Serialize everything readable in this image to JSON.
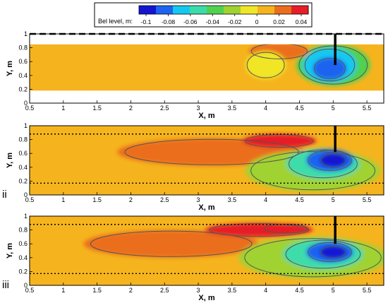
{
  "colors": {
    "scale": [
      "#1414d2",
      "#1e64f0",
      "#14c8f0",
      "#3cdcaa",
      "#50d250",
      "#a0d232",
      "#f0e628",
      "#f5b41e",
      "#eb6e1e",
      "#e61e28"
    ],
    "contour": "#555555",
    "frame": "#000000"
  },
  "chart_data": {
    "type": "heatmap",
    "colorbar": {
      "label": "Bel level, m:",
      "ticks": [
        "-0.1",
        "-0.08",
        "-0.06",
        "-0.04",
        "-0.02",
        "0",
        "0.02",
        "0.04"
      ],
      "range": [
        -0.1,
        0.04
      ]
    },
    "panels": [
      {
        "label": "",
        "xlabel": "X, m",
        "ylabel": "Y, m",
        "xlim": [
          0.5,
          5.75
        ],
        "ylim": [
          0,
          1
        ],
        "xticks": [
          "0.5",
          "1",
          "1.5",
          "2",
          "2.5",
          "3",
          "3.5",
          "4",
          "4.5",
          "5",
          "5.5"
        ],
        "yticks": [
          "0",
          "0.2",
          "0.4",
          "0.6",
          "0.8",
          "1"
        ],
        "data_region": {
          "x": [
            0.5,
            5.75
          ],
          "y": [
            0.18,
            0.85
          ]
        },
        "blobs": [
          {
            "x": 5.0,
            "y": 0.55,
            "rx": 0.55,
            "ry": 0.3,
            "v": -0.04
          },
          {
            "x": 4.95,
            "y": 0.55,
            "rx": 0.4,
            "ry": 0.25,
            "v": -0.06
          },
          {
            "x": 4.95,
            "y": 0.5,
            "rx": 0.25,
            "ry": 0.16,
            "v": -0.085
          },
          {
            "x": 4.2,
            "y": 0.75,
            "rx": 0.45,
            "ry": 0.12,
            "v": 0.02
          },
          {
            "x": 4.0,
            "y": 0.55,
            "rx": 0.3,
            "ry": 0.2,
            "v": -0.01
          }
        ],
        "reference_lines": [
          {
            "y": 1.0,
            "style": "dashed"
          }
        ],
        "pile": {
          "x": 5.03,
          "y_top": 1.0,
          "y_bottom": 0.55
        }
      },
      {
        "label": "ii",
        "xlabel": "X, m",
        "ylabel": "Y, m",
        "xlim": [
          0.5,
          5.75
        ],
        "ylim": [
          0,
          1
        ],
        "xticks": [
          "0.5",
          "1",
          "1.5",
          "2",
          "2.5",
          "3",
          "3.5",
          "4",
          "4.5",
          "5",
          "5.5"
        ],
        "yticks": [
          "0",
          "0.2",
          "0.4",
          "0.6",
          "0.8",
          "1"
        ],
        "data_region": {
          "x": [
            0.5,
            5.75
          ],
          "y": [
            0,
            1
          ]
        },
        "blobs": [
          {
            "x": 3.2,
            "y": 0.62,
            "rx": 1.4,
            "ry": 0.2,
            "v": 0.018
          },
          {
            "x": 4.2,
            "y": 0.78,
            "rx": 0.55,
            "ry": 0.1,
            "v": 0.035
          },
          {
            "x": 4.7,
            "y": 0.35,
            "rx": 1.0,
            "ry": 0.3,
            "v": -0.03
          },
          {
            "x": 4.85,
            "y": 0.45,
            "rx": 0.55,
            "ry": 0.22,
            "v": -0.055
          },
          {
            "x": 4.95,
            "y": 0.5,
            "rx": 0.35,
            "ry": 0.16,
            "v": -0.075
          },
          {
            "x": 5.0,
            "y": 0.5,
            "rx": 0.2,
            "ry": 0.1,
            "v": -0.095
          }
        ],
        "reference_lines": [
          {
            "y": 0.88,
            "style": "dotted"
          },
          {
            "y": 0.17,
            "style": "dotted"
          }
        ],
        "pile": {
          "x": 5.03,
          "y_top": 1.0,
          "y_bottom": 0.62
        }
      },
      {
        "label": "iii",
        "xlabel": "X, m",
        "ylabel": "Y, m",
        "xlim": [
          0.5,
          5.75
        ],
        "ylim": [
          0,
          1
        ],
        "xticks": [
          "0.5",
          "1",
          "1.5",
          "2",
          "2.5",
          "3",
          "3.5",
          "4",
          "4.5",
          "5",
          "5.5"
        ],
        "yticks": [
          "0",
          "0.2",
          "0.4",
          "0.6",
          "0.8",
          "1"
        ],
        "data_region": {
          "x": [
            0.5,
            5.75
          ],
          "y": [
            0,
            1
          ]
        },
        "blobs": [
          {
            "x": 2.6,
            "y": 0.6,
            "rx": 1.3,
            "ry": 0.2,
            "v": 0.022
          },
          {
            "x": 3.9,
            "y": 0.8,
            "rx": 0.8,
            "ry": 0.1,
            "v": 0.03
          },
          {
            "x": 4.3,
            "y": 0.82,
            "rx": 0.35,
            "ry": 0.07,
            "v": 0.045
          },
          {
            "x": 4.7,
            "y": 0.4,
            "rx": 1.1,
            "ry": 0.3,
            "v": -0.03
          },
          {
            "x": 4.85,
            "y": 0.45,
            "rx": 0.6,
            "ry": 0.22,
            "v": -0.055
          },
          {
            "x": 4.95,
            "y": 0.48,
            "rx": 0.35,
            "ry": 0.15,
            "v": -0.075
          },
          {
            "x": 5.0,
            "y": 0.48,
            "rx": 0.2,
            "ry": 0.09,
            "v": -0.1
          }
        ],
        "reference_lines": [
          {
            "y": 0.88,
            "style": "dotted"
          },
          {
            "y": 0.17,
            "style": "dotted"
          }
        ],
        "pile": {
          "x": 5.03,
          "y_top": 1.0,
          "y_bottom": 0.6
        }
      }
    ]
  }
}
